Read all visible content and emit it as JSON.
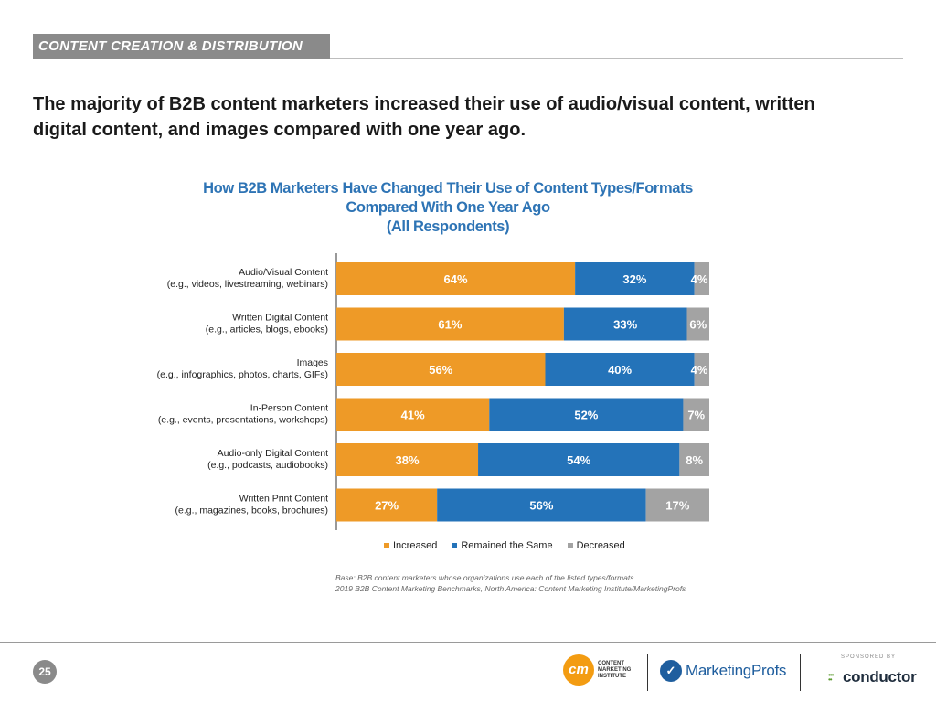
{
  "header": {
    "section_label": "CONTENT CREATION & DISTRIBUTION"
  },
  "headline": "The majority of B2B content marketers increased their use of audio/visual content, written digital content, and images compared with one year ago.",
  "chart_data": {
    "type": "bar",
    "orientation": "horizontal",
    "stacked": true,
    "title_lines": [
      "How B2B Marketers Have Changed Their Use of Content Types/Formats",
      "Compared With One Year Ago",
      "(All Respondents)"
    ],
    "categories": [
      {
        "name": "Audio/Visual Content",
        "detail": "(e.g., videos, livestreaming, webinars)"
      },
      {
        "name": "Written Digital Content",
        "detail": "(e.g., articles, blogs, ebooks)"
      },
      {
        "name": "Images",
        "detail": "(e.g., infographics, photos, charts, GIFs)"
      },
      {
        "name": "In-Person Content",
        "detail": "(e.g., events, presentations, workshops)"
      },
      {
        "name": "Audio-only Digital Content",
        "detail": "(e.g., podcasts, audiobooks)"
      },
      {
        "name": "Written Print Content",
        "detail": "(e.g., magazines, books, brochures)"
      }
    ],
    "series": [
      {
        "name": "Increased",
        "color": "#ee9a27",
        "values": [
          64,
          61,
          56,
          41,
          38,
          27
        ],
        "labels": [
          "64%",
          "61%",
          "56%",
          "41%",
          "38%",
          "27%"
        ]
      },
      {
        "name": "Remained the Same",
        "color": "#2473b9",
        "values": [
          32,
          33,
          40,
          52,
          54,
          56
        ],
        "labels": [
          "32%",
          "33%",
          "40%",
          "52%",
          "54%",
          "56%"
        ]
      },
      {
        "name": "Decreased",
        "color": "#a3a3a3",
        "values": [
          4,
          6,
          4,
          7,
          8,
          17
        ],
        "labels": [
          "4%",
          "6%",
          "4%",
          "7%",
          "8%",
          "17%"
        ]
      }
    ],
    "xlim": [
      0,
      100
    ],
    "legend_position": "bottom",
    "grid": false
  },
  "source": {
    "line1": "Base: B2B content marketers whose organizations use each of the listed types/formats.",
    "line2": "2019 B2B Content Marketing Benchmarks, North America: Content Marketing Institute/MarketingProfs"
  },
  "footer": {
    "page_number": "25",
    "cmi_mark": "cm",
    "cmi_lines": [
      "CONTENT",
      "MARKETING",
      "INSTITUTE"
    ],
    "mp_name": "MarketingProfs",
    "sponsored_by": "SPONSORED BY",
    "conductor_name": "conductor"
  }
}
